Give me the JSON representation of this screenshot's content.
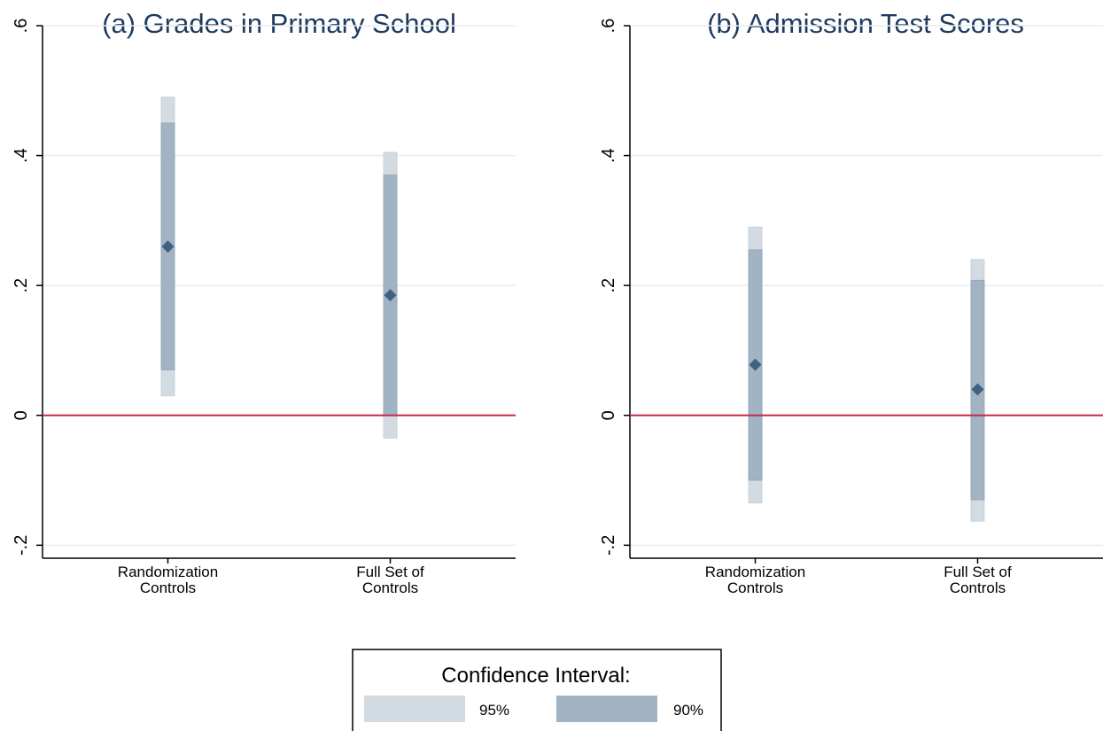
{
  "chart_data": [
    {
      "type": "scatter",
      "title": "(a) Grades in Primary School",
      "categories": [
        "Randomization Controls",
        "Full Set of Controls"
      ],
      "category_lines": [
        [
          "Randomization",
          "Controls"
        ],
        [
          "Full Set of",
          "Controls"
        ]
      ],
      "estimates": [
        0.26,
        0.185
      ],
      "ci95": [
        [
          0.03,
          0.49
        ],
        [
          -0.035,
          0.405
        ]
      ],
      "ci90": [
        [
          0.07,
          0.45
        ],
        [
          0.0,
          0.37
        ]
      ],
      "ylim": [
        -0.22,
        0.6
      ],
      "yticks": [
        -0.2,
        0,
        0.2,
        0.4,
        0.6
      ],
      "ytick_labels": [
        "-.2",
        "0",
        ".2",
        ".4",
        ".6"
      ],
      "reference_line": 0,
      "grid": true
    },
    {
      "type": "scatter",
      "title": "(b) Admission Test Scores",
      "categories": [
        "Randomization Controls",
        "Full Set of Controls"
      ],
      "category_lines": [
        [
          "Randomization",
          "Controls"
        ],
        [
          "Full Set of",
          "Controls"
        ]
      ],
      "estimates": [
        0.078,
        0.04
      ],
      "ci95": [
        [
          -0.135,
          0.29
        ],
        [
          -0.163,
          0.24
        ]
      ],
      "ci90": [
        [
          -0.1,
          0.255
        ],
        [
          -0.13,
          0.208
        ]
      ],
      "ylim": [
        -0.22,
        0.6
      ],
      "yticks": [
        -0.2,
        0,
        0.2,
        0.4,
        0.6
      ],
      "ytick_labels": [
        "-.2",
        "0",
        ".2",
        ".4",
        ".6"
      ],
      "reference_line": 0,
      "grid": true
    }
  ],
  "legend": {
    "title": "Confidence Interval:",
    "items": [
      {
        "label": "95%",
        "color": "#d3dbe2"
      },
      {
        "label": "90%",
        "color": "#a2b4c3"
      }
    ],
    "placement": "bottom-center"
  },
  "colors": {
    "ci95": "#d3dbe2",
    "ci90": "#a2b4c3",
    "marker": "#3f6280",
    "reference_line": "#c8284a",
    "title": "#1e3a5f",
    "grid": "#e8ecef"
  }
}
